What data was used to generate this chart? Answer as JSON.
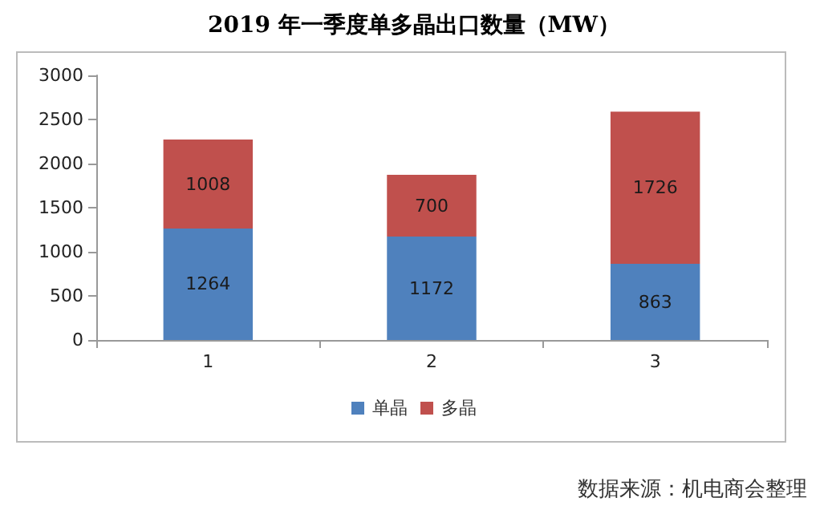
{
  "chart_data": {
    "type": "bar",
    "title": "2019 年一季度单多晶出口数量（MW）",
    "categories": [
      "1",
      "2",
      "3"
    ],
    "series": [
      {
        "name": "单晶",
        "color": "#4f81bd",
        "values": [
          1264,
          1172,
          863
        ]
      },
      {
        "name": "多晶",
        "color": "#c0504d",
        "values": [
          1008,
          700,
          1726
        ]
      }
    ],
    "stacked": true,
    "data_labels": true,
    "ylim": [
      0,
      3000
    ],
    "yticks": [
      0,
      500,
      1000,
      1500,
      2000,
      2500,
      3000
    ],
    "grid": false,
    "legend": "bottom",
    "annotations": [
      "数据来源：机电商会整理"
    ]
  }
}
